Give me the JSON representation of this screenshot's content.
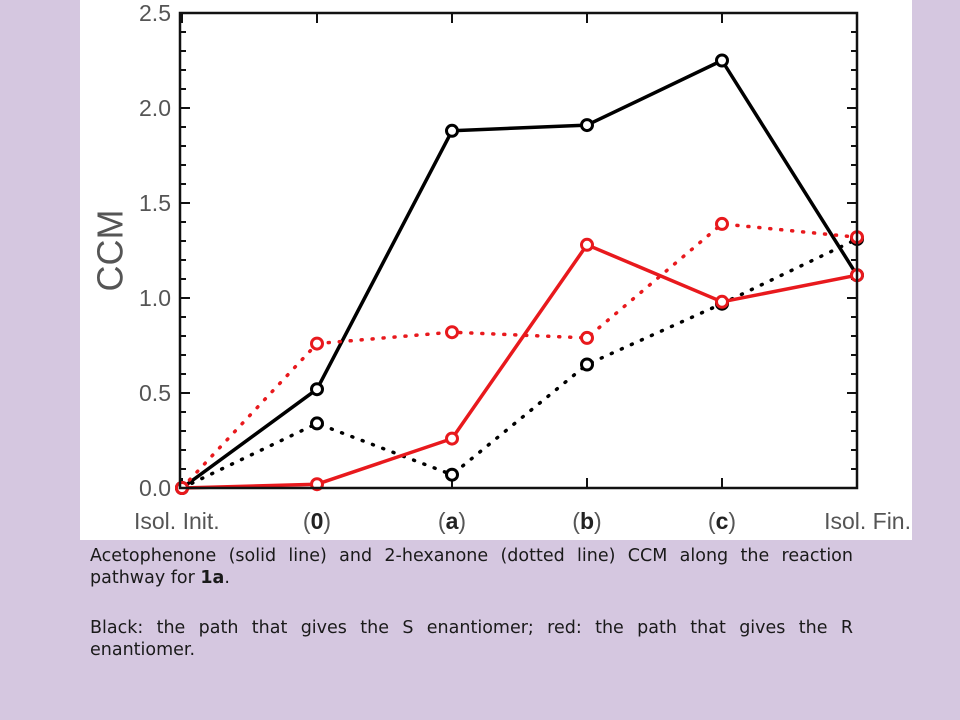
{
  "chart_data": {
    "type": "line",
    "ylabel": "CCM",
    "ylim": [
      0,
      2.5
    ],
    "yticks": [
      "0.0",
      "0.5",
      "1.0",
      "1.5",
      "2.0",
      "2.5"
    ],
    "categories": [
      {
        "pre": "Isol. Init.",
        "bold": "",
        "post": ""
      },
      {
        "pre": "(",
        "bold": "0",
        "post": ")"
      },
      {
        "pre": "(",
        "bold": "a",
        "post": ")"
      },
      {
        "pre": "(",
        "bold": "b",
        "post": ")"
      },
      {
        "pre": "(",
        "bold": "c",
        "post": ")"
      },
      {
        "pre": "Isol. Fin.",
        "bold": "",
        "post": ""
      }
    ],
    "grid": false,
    "legend": "none",
    "series": [
      {
        "color": "#000000",
        "style": "solid",
        "values": [
          0.0,
          0.52,
          1.88,
          1.91,
          2.25,
          1.12
        ]
      },
      {
        "color": "#000000",
        "style": "dotted",
        "values": [
          0.0,
          0.34,
          0.07,
          0.65,
          0.97,
          1.31
        ]
      },
      {
        "color": "#e8191d",
        "style": "solid",
        "values": [
          0.0,
          0.02,
          0.26,
          1.28,
          0.98,
          1.12
        ]
      },
      {
        "color": "#e8191d",
        "style": "dotted",
        "values": [
          0.0,
          0.76,
          0.82,
          0.79,
          1.39,
          1.32
        ]
      }
    ]
  },
  "caption": {
    "line1_pre": "Acetophenone (solid line) and 2-hexanone (dotted line) CCM along the reaction pathway for ",
    "line1_bold": "1a",
    "line1_post": ".",
    "line2": "Black: the path that gives the S enantiomer; red: the path that gives the R enantiomer."
  }
}
